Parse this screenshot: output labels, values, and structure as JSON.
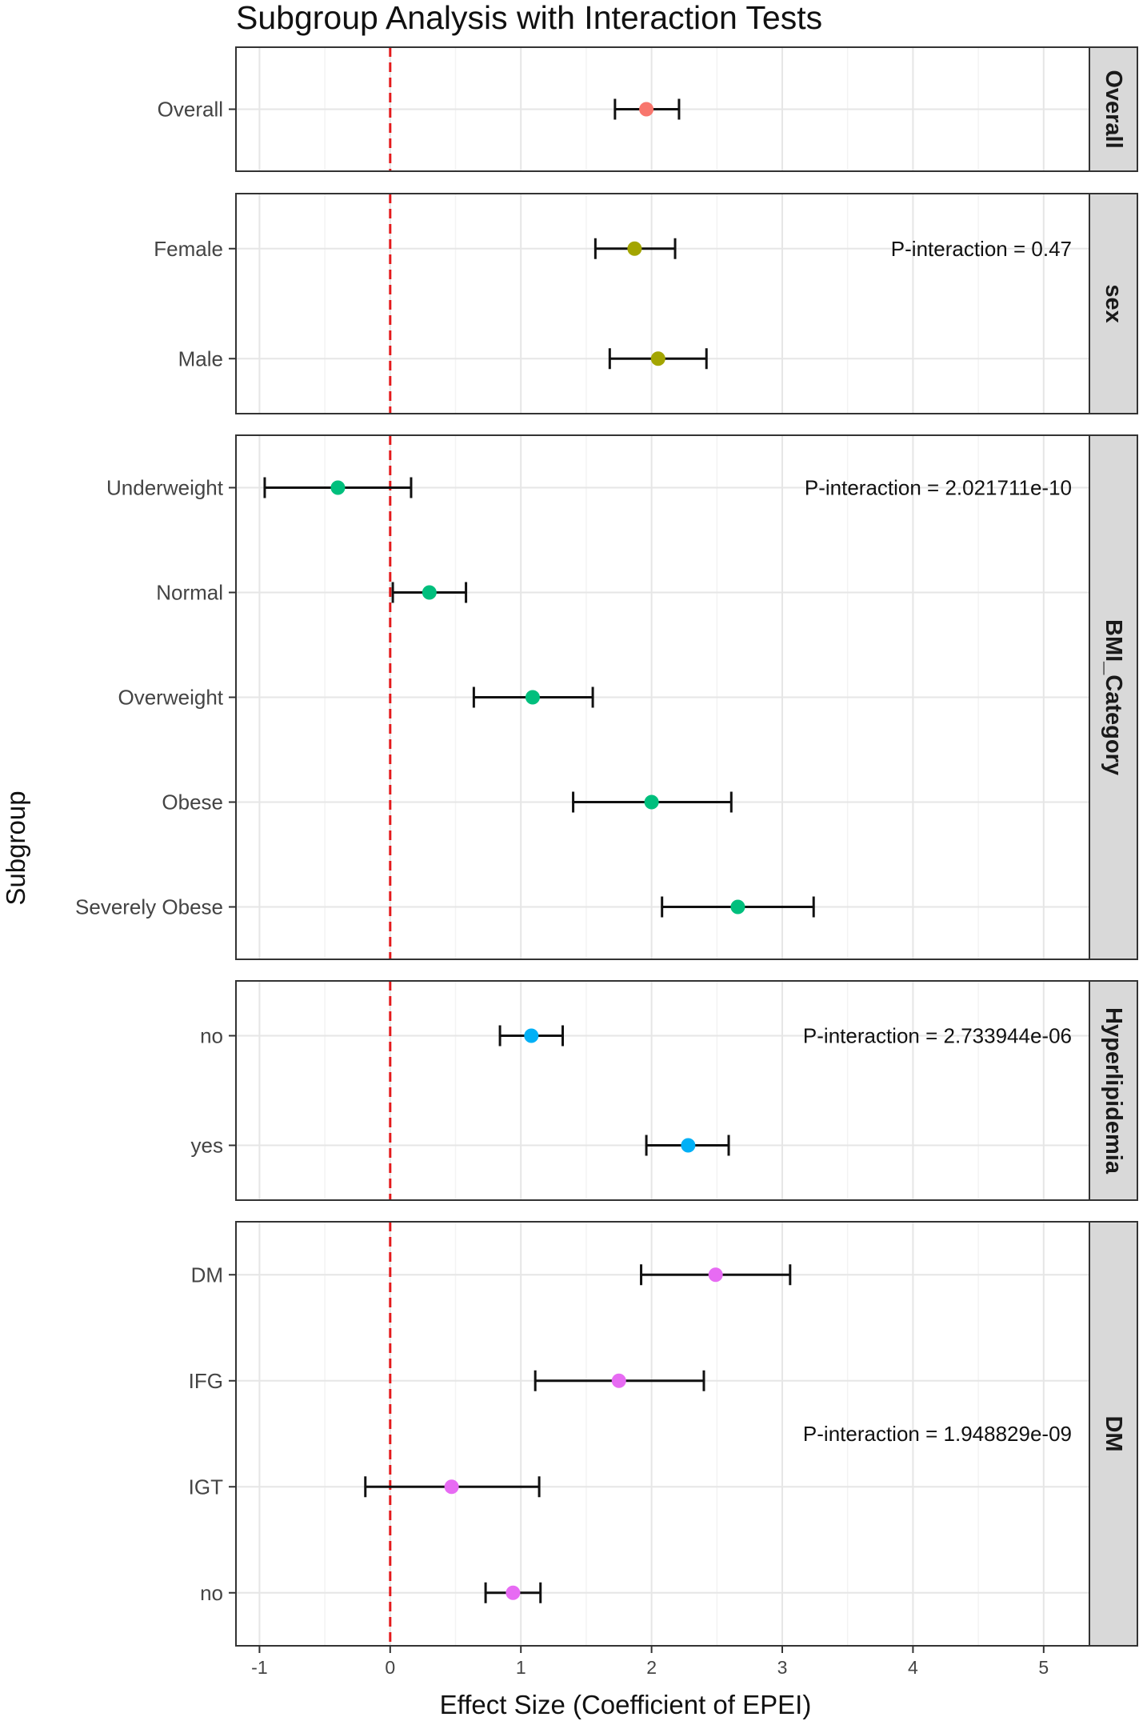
{
  "chart_data": {
    "type": "forest",
    "title": "Subgroup Analysis with Interaction Tests",
    "xlabel": "Effect Size (Coefficient of EPEI)",
    "ylabel": "Subgroup",
    "xlim": [
      -1.18,
      5.35
    ],
    "xticks": [
      -1,
      0,
      1,
      2,
      3,
      4,
      5
    ],
    "xtick_labels": [
      "-1",
      "0",
      "1",
      "2",
      "3",
      "4",
      "5"
    ],
    "reference_line": {
      "x": 0,
      "style": "dashed",
      "color": "#e41a1c"
    },
    "panels": [
      {
        "name": "Overall",
        "color": "#f8766d",
        "p_interaction": null,
        "rows": [
          {
            "label": "Overall",
            "estimate": 1.96,
            "lower": 1.72,
            "upper": 2.21
          }
        ]
      },
      {
        "name": "sex",
        "color": "#a3a500",
        "p_interaction": "P-interaction = 0.47",
        "rows": [
          {
            "label": "Female",
            "estimate": 1.87,
            "lower": 1.57,
            "upper": 2.18
          },
          {
            "label": "Male",
            "estimate": 2.05,
            "lower": 1.68,
            "upper": 2.42
          }
        ]
      },
      {
        "name": "BMI_Category",
        "color": "#00bf7d",
        "p_interaction": "P-interaction = 2.021711e-10",
        "rows": [
          {
            "label": "Underweight",
            "estimate": -0.4,
            "lower": -0.96,
            "upper": 0.16
          },
          {
            "label": "Normal",
            "estimate": 0.3,
            "lower": 0.02,
            "upper": 0.58
          },
          {
            "label": "Overweight",
            "estimate": 1.09,
            "lower": 0.64,
            "upper": 1.55
          },
          {
            "label": "Obese",
            "estimate": 2.0,
            "lower": 1.4,
            "upper": 2.61
          },
          {
            "label": "Severely Obese",
            "estimate": 2.66,
            "lower": 2.08,
            "upper": 3.24
          }
        ]
      },
      {
        "name": "Hyperlipidemia",
        "color": "#00b0f6",
        "p_interaction": "P-interaction = 2.733944e-06",
        "rows": [
          {
            "label": "no",
            "estimate": 1.08,
            "lower": 0.84,
            "upper": 1.32
          },
          {
            "label": "yes",
            "estimate": 2.28,
            "lower": 1.96,
            "upper": 2.59
          }
        ]
      },
      {
        "name": "DM",
        "color": "#e76bf3",
        "p_interaction": "P-interaction = 1.948829e-09",
        "rows": [
          {
            "label": "DM",
            "estimate": 2.49,
            "lower": 1.92,
            "upper": 3.06
          },
          {
            "label": "IFG",
            "estimate": 1.75,
            "lower": 1.11,
            "upper": 2.4
          },
          {
            "label": "IGT",
            "estimate": 0.47,
            "lower": -0.19,
            "upper": 1.14
          },
          {
            "label": "no",
            "estimate": 0.94,
            "lower": 0.73,
            "upper": 1.15
          }
        ]
      }
    ]
  }
}
